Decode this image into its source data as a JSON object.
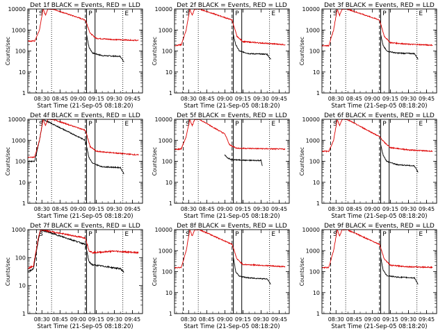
{
  "figure": {
    "xtick_labels": [
      "08:30",
      "08:45",
      "09:00",
      "09:15",
      "09:30",
      "09:45"
    ],
    "ytick_labels": [
      "1",
      "10",
      "100",
      "1000",
      "10000"
    ],
    "xlabel": "Start Time (21-Sep-05 08:18:20)",
    "ylabel": "Counts/sec",
    "plot_letters": [
      "S",
      "P",
      "E"
    ]
  },
  "colors": {
    "events": "#000000",
    "lld": "#dd0000",
    "background": "#ffffff"
  },
  "chart_data": [
    {
      "type": "line",
      "title": "Det 1f BLACK = Events, RED = LLD",
      "yscale": "log",
      "ylim": [
        1,
        10000
      ],
      "xlim": [
        "08:18:20",
        "09:53:20"
      ],
      "series": [
        {
          "color": "black",
          "points": [
            [
              "09:07",
              600
            ],
            [
              "09:09",
              150
            ],
            [
              "09:12",
              80
            ],
            [
              "09:20",
              60
            ],
            [
              "09:35",
              55
            ],
            [
              "09:38",
              30
            ]
          ]
        },
        {
          "color": "red",
          "points": [
            [
              "08:18",
              300
            ],
            [
              "08:24",
              300
            ],
            [
              "08:28",
              1000
            ],
            [
              "08:31",
              10000
            ],
            [
              "08:33",
              5000
            ],
            [
              "08:35",
              10000
            ],
            [
              "08:39",
              10000
            ],
            [
              "09:06",
              3000
            ],
            [
              "09:10",
              700
            ],
            [
              "09:15",
              400
            ],
            [
              "09:30",
              350
            ],
            [
              "09:50",
              320
            ]
          ]
        }
      ]
    },
    {
      "type": "line",
      "title": "Det 2f BLACK = Events, RED = LLD",
      "yscale": "log",
      "ylim": [
        1,
        10000
      ],
      "xlim": [
        "08:18:20",
        "09:53:20"
      ],
      "series": [
        {
          "color": "black",
          "points": [
            [
              "09:07",
              600
            ],
            [
              "09:09",
              200
            ],
            [
              "09:12",
              100
            ],
            [
              "09:20",
              75
            ],
            [
              "09:35",
              70
            ],
            [
              "09:38",
              40
            ]
          ]
        },
        {
          "color": "red",
          "points": [
            [
              "08:18",
              180
            ],
            [
              "08:24",
              200
            ],
            [
              "08:28",
              1000
            ],
            [
              "08:31",
              10000
            ],
            [
              "08:33",
              5000
            ],
            [
              "08:35",
              10000
            ],
            [
              "08:39",
              10000
            ],
            [
              "09:06",
              3000
            ],
            [
              "09:10",
              500
            ],
            [
              "09:15",
              280
            ],
            [
              "09:30",
              240
            ],
            [
              "09:50",
              200
            ]
          ]
        }
      ]
    },
    {
      "type": "line",
      "title": "Det 3f BLACK = Events, RED = LLD",
      "yscale": "log",
      "ylim": [
        1,
        10000
      ],
      "xlim": [
        "08:18:20",
        "09:53:20"
      ],
      "series": [
        {
          "color": "black",
          "points": [
            [
              "09:07",
              600
            ],
            [
              "09:09",
              180
            ],
            [
              "09:12",
              100
            ],
            [
              "09:20",
              80
            ],
            [
              "09:35",
              75
            ],
            [
              "09:38",
              40
            ]
          ]
        },
        {
          "color": "red",
          "points": [
            [
              "08:18",
              180
            ],
            [
              "08:24",
              180
            ],
            [
              "08:28",
              1000
            ],
            [
              "08:31",
              10000
            ],
            [
              "08:33",
              5000
            ],
            [
              "08:35",
              10000
            ],
            [
              "08:39",
              10000
            ],
            [
              "09:06",
              3000
            ],
            [
              "09:10",
              500
            ],
            [
              "09:15",
              250
            ],
            [
              "09:30",
              210
            ],
            [
              "09:50",
              190
            ]
          ]
        }
      ]
    },
    {
      "type": "line",
      "title": "Det 4f BLACK = Events, RED = LLD",
      "yscale": "log",
      "ylim": [
        1,
        10000
      ],
      "xlim": [
        "08:18:20",
        "09:53:20"
      ],
      "series": [
        {
          "color": "black",
          "points": [
            [
              "08:18",
              100
            ],
            [
              "08:24",
              100
            ],
            [
              "08:28",
              1000
            ],
            [
              "08:31",
              10000
            ],
            [
              "09:06",
              1000
            ],
            [
              "09:09",
              150
            ],
            [
              "09:12",
              80
            ],
            [
              "09:20",
              55
            ],
            [
              "09:35",
              50
            ],
            [
              "09:38",
              25
            ]
          ]
        },
        {
          "color": "red",
          "points": [
            [
              "08:18",
              150
            ],
            [
              "08:24",
              160
            ],
            [
              "08:28",
              1000
            ],
            [
              "08:31",
              10000
            ],
            [
              "08:33",
              5000
            ],
            [
              "08:35",
              10000
            ],
            [
              "08:39",
              10000
            ],
            [
              "09:06",
              3000
            ],
            [
              "09:10",
              500
            ],
            [
              "09:15",
              300
            ],
            [
              "09:30",
              250
            ],
            [
              "09:50",
              200
            ]
          ]
        }
      ]
    },
    {
      "type": "line",
      "title": "Det 5f BLACK = Events, RED = LLD",
      "yscale": "log",
      "ylim": [
        1,
        10000
      ],
      "xlim": [
        "08:18:20",
        "09:53:20"
      ],
      "series": [
        {
          "color": "black",
          "points": [
            [
              "09:00",
              200
            ],
            [
              "09:02",
              150
            ],
            [
              "09:05",
              120
            ],
            [
              "09:20",
              110
            ],
            [
              "09:30",
              110
            ],
            [
              "09:31",
              60
            ]
          ]
        },
        {
          "color": "red",
          "points": [
            [
              "08:18",
              350
            ],
            [
              "08:24",
              400
            ],
            [
              "08:28",
              1500
            ],
            [
              "08:31",
              10000
            ],
            [
              "08:33",
              5000
            ],
            [
              "08:35",
              10000
            ],
            [
              "08:39",
              10000
            ],
            [
              "09:00",
              2000
            ],
            [
              "09:04",
              600
            ],
            [
              "09:10",
              420
            ],
            [
              "09:30",
              400
            ],
            [
              "09:50",
              380
            ]
          ]
        }
      ]
    },
    {
      "type": "line",
      "title": "Det 6f BLACK = Events, RED = LLD",
      "yscale": "log",
      "ylim": [
        1,
        10000
      ],
      "xlim": [
        "08:18:20",
        "09:53:20"
      ],
      "series": [
        {
          "color": "black",
          "points": [
            [
              "09:07",
              600
            ],
            [
              "09:09",
              200
            ],
            [
              "09:12",
              100
            ],
            [
              "09:20",
              70
            ],
            [
              "09:35",
              60
            ],
            [
              "09:38",
              30
            ]
          ]
        },
        {
          "color": "red",
          "points": [
            [
              "08:18",
              300
            ],
            [
              "08:24",
              300
            ],
            [
              "08:28",
              1000
            ],
            [
              "08:31",
              10000
            ],
            [
              "08:33",
              5000
            ],
            [
              "08:35",
              10000
            ],
            [
              "08:39",
              10000
            ],
            [
              "09:06",
              1500
            ],
            [
              "09:10",
              800
            ],
            [
              "09:15",
              450
            ],
            [
              "09:30",
              350
            ],
            [
              "09:50",
              300
            ]
          ]
        }
      ]
    },
    {
      "type": "line",
      "title": "Det 7f BLACK = Events, RED = LLD",
      "yscale": "log",
      "ylim": [
        1,
        1000
      ],
      "xlim": [
        "08:18:20",
        "09:53:20"
      ],
      "series": [
        {
          "color": "black",
          "points": [
            [
              "08:18",
              30
            ],
            [
              "08:23",
              40
            ],
            [
              "08:27",
              400
            ],
            [
              "08:29",
              1000
            ],
            [
              "09:06",
              300
            ],
            [
              "09:09",
              70
            ],
            [
              "09:12",
              55
            ],
            [
              "09:20",
              50
            ],
            [
              "09:35",
              40
            ],
            [
              "09:38",
              30
            ]
          ]
        },
        {
          "color": "red",
          "points": [
            [
              "08:18",
              40
            ],
            [
              "08:23",
              50
            ],
            [
              "08:27",
              500
            ],
            [
              "08:29",
              1000
            ],
            [
              "09:06",
              500
            ],
            [
              "09:09",
              180
            ],
            [
              "09:12",
              150
            ],
            [
              "09:30",
              170
            ],
            [
              "09:50",
              150
            ]
          ]
        }
      ]
    },
    {
      "type": "line",
      "title": "Det 8f BLACK = Events, RED = LLD",
      "yscale": "log",
      "ylim": [
        1,
        10000
      ],
      "xlim": [
        "08:18:20",
        "09:53:20"
      ],
      "series": [
        {
          "color": "black",
          "points": [
            [
              "09:07",
              500
            ],
            [
              "09:09",
              100
            ],
            [
              "09:12",
              60
            ],
            [
              "09:20",
              50
            ],
            [
              "09:35",
              45
            ],
            [
              "09:38",
              25
            ]
          ]
        },
        {
          "color": "red",
          "points": [
            [
              "08:18",
              150
            ],
            [
              "08:24",
              160
            ],
            [
              "08:28",
              1000
            ],
            [
              "08:31",
              10000
            ],
            [
              "08:33",
              5000
            ],
            [
              "08:35",
              10000
            ],
            [
              "08:39",
              10000
            ],
            [
              "09:06",
              2000
            ],
            [
              "09:10",
              400
            ],
            [
              "09:15",
              220
            ],
            [
              "09:30",
              200
            ],
            [
              "09:50",
              170
            ]
          ]
        }
      ]
    },
    {
      "type": "line",
      "title": "Det 9f BLACK = Events, RED = LLD",
      "yscale": "log",
      "ylim": [
        1,
        10000
      ],
      "xlim": [
        "08:18:20",
        "09:53:20"
      ],
      "series": [
        {
          "color": "black",
          "points": [
            [
              "09:07",
              500
            ],
            [
              "09:09",
              120
            ],
            [
              "09:12",
              65
            ],
            [
              "09:20",
              55
            ],
            [
              "09:35",
              50
            ],
            [
              "09:38",
              25
            ]
          ]
        },
        {
          "color": "red",
          "points": [
            [
              "08:18",
              150
            ],
            [
              "08:24",
              160
            ],
            [
              "08:28",
              1000
            ],
            [
              "08:31",
              10000
            ],
            [
              "08:33",
              5000
            ],
            [
              "08:35",
              10000
            ],
            [
              "08:39",
              10000
            ],
            [
              "09:06",
              2000
            ],
            [
              "09:10",
              400
            ],
            [
              "09:15",
              200
            ],
            [
              "09:30",
              170
            ],
            [
              "09:50",
              160
            ]
          ]
        }
      ]
    }
  ]
}
